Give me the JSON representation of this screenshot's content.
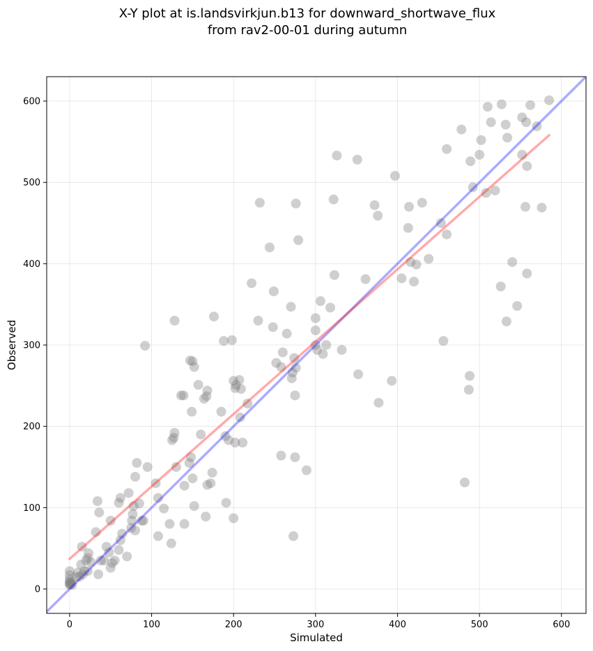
{
  "chart_data": {
    "type": "scatter",
    "title_lines": [
      "X-Y plot at is.landsvirkjun.b13 for downward_shortwave_flux",
      "from rav2-00-01 during autumn"
    ],
    "xlabel": "Simulated",
    "ylabel": "Observed",
    "xlim": [
      -28,
      630
    ],
    "ylim": [
      -30,
      630
    ],
    "xticks": [
      0,
      100,
      200,
      300,
      400,
      500,
      600
    ],
    "yticks": [
      0,
      100,
      200,
      300,
      400,
      500,
      600
    ],
    "grid": true,
    "point_color": "#808080",
    "identity_line_color": "#0000ff",
    "fit_line_color": "#ff0000",
    "fit_line": {
      "x": [
        0,
        585
      ],
      "y": [
        37,
        558
      ]
    },
    "points": [
      [
        0,
        5
      ],
      [
        0,
        7
      ],
      [
        0,
        9
      ],
      [
        0,
        12
      ],
      [
        0,
        17
      ],
      [
        0,
        22
      ],
      [
        1,
        6
      ],
      [
        2,
        8
      ],
      [
        3,
        5
      ],
      [
        8,
        15
      ],
      [
        10,
        20
      ],
      [
        12,
        15
      ],
      [
        14,
        30
      ],
      [
        15,
        52
      ],
      [
        16,
        18
      ],
      [
        18,
        22
      ],
      [
        20,
        35
      ],
      [
        22,
        22
      ],
      [
        22,
        38
      ],
      [
        23,
        44
      ],
      [
        26,
        33
      ],
      [
        32,
        70
      ],
      [
        34,
        108
      ],
      [
        35,
        18
      ],
      [
        36,
        94
      ],
      [
        38,
        35
      ],
      [
        42,
        35
      ],
      [
        45,
        52
      ],
      [
        48,
        45
      ],
      [
        50,
        84
      ],
      [
        50,
        26
      ],
      [
        52,
        32
      ],
      [
        55,
        35
      ],
      [
        60,
        106
      ],
      [
        60,
        48
      ],
      [
        62,
        112
      ],
      [
        62,
        60
      ],
      [
        64,
        68
      ],
      [
        70,
        40
      ],
      [
        72,
        118
      ],
      [
        75,
        75
      ],
      [
        76,
        84
      ],
      [
        77,
        92
      ],
      [
        78,
        102
      ],
      [
        80,
        138
      ],
      [
        80,
        72
      ],
      [
        82,
        155
      ],
      [
        85,
        105
      ],
      [
        88,
        84
      ],
      [
        90,
        84
      ],
      [
        92,
        299
      ],
      [
        95,
        150
      ],
      [
        105,
        130
      ],
      [
        108,
        112
      ],
      [
        108,
        65
      ],
      [
        115,
        99
      ],
      [
        122,
        80
      ],
      [
        124,
        56
      ],
      [
        125,
        183
      ],
      [
        127,
        186
      ],
      [
        128,
        192
      ],
      [
        128,
        330
      ],
      [
        130,
        150
      ],
      [
        136,
        238
      ],
      [
        139,
        238
      ],
      [
        140,
        80
      ],
      [
        140,
        127
      ],
      [
        146,
        155
      ],
      [
        147,
        281
      ],
      [
        148,
        162
      ],
      [
        149,
        218
      ],
      [
        150,
        136
      ],
      [
        150,
        280
      ],
      [
        152,
        273
      ],
      [
        152,
        102
      ],
      [
        157,
        251
      ],
      [
        160,
        190
      ],
      [
        164,
        234
      ],
      [
        166,
        89
      ],
      [
        167,
        237
      ],
      [
        168,
        128
      ],
      [
        168,
        244
      ],
      [
        172,
        130
      ],
      [
        174,
        143
      ],
      [
        176,
        335
      ],
      [
        185,
        218
      ],
      [
        188,
        305
      ],
      [
        190,
        188
      ],
      [
        191,
        106
      ],
      [
        194,
        183
      ],
      [
        198,
        306
      ],
      [
        200,
        256
      ],
      [
        200,
        87
      ],
      [
        202,
        247
      ],
      [
        202,
        180
      ],
      [
        203,
        251
      ],
      [
        207,
        257
      ],
      [
        208,
        211
      ],
      [
        209,
        246
      ],
      [
        211,
        180
      ],
      [
        217,
        228
      ],
      [
        222,
        376
      ],
      [
        230,
        330
      ],
      [
        232,
        475
      ],
      [
        244,
        420
      ],
      [
        248,
        322
      ],
      [
        249,
        366
      ],
      [
        252,
        278
      ],
      [
        258,
        164
      ],
      [
        258,
        273
      ],
      [
        260,
        291
      ],
      [
        265,
        314
      ],
      [
        270,
        347
      ],
      [
        271,
        259
      ],
      [
        272,
        266
      ],
      [
        273,
        65
      ],
      [
        274,
        284
      ],
      [
        275,
        162
      ],
      [
        275,
        238
      ],
      [
        276,
        474
      ],
      [
        276,
        272
      ],
      [
        279,
        429
      ],
      [
        289,
        146
      ],
      [
        300,
        300
      ],
      [
        300,
        318
      ],
      [
        300,
        333
      ],
      [
        302,
        294
      ],
      [
        306,
        354
      ],
      [
        309,
        289
      ],
      [
        313,
        300
      ],
      [
        318,
        346
      ],
      [
        322,
        479
      ],
      [
        323,
        386
      ],
      [
        326,
        533
      ],
      [
        332,
        294
      ],
      [
        351,
        528
      ],
      [
        352,
        264
      ],
      [
        361,
        381
      ],
      [
        372,
        472
      ],
      [
        376,
        459
      ],
      [
        377,
        229
      ],
      [
        393,
        256
      ],
      [
        397,
        508
      ],
      [
        405,
        382
      ],
      [
        413,
        444
      ],
      [
        414,
        470
      ],
      [
        416,
        402
      ],
      [
        420,
        378
      ],
      [
        423,
        399
      ],
      [
        430,
        475
      ],
      [
        438,
        406
      ],
      [
        453,
        450
      ],
      [
        456,
        305
      ],
      [
        460,
        436
      ],
      [
        460,
        541
      ],
      [
        478,
        565
      ],
      [
        482,
        131
      ],
      [
        487,
        245
      ],
      [
        488,
        262
      ],
      [
        489,
        526
      ],
      [
        492,
        494
      ],
      [
        500,
        534
      ],
      [
        502,
        552
      ],
      [
        508,
        487
      ],
      [
        510,
        593
      ],
      [
        514,
        574
      ],
      [
        519,
        490
      ],
      [
        526,
        372
      ],
      [
        527,
        596
      ],
      [
        532,
        571
      ],
      [
        533,
        329
      ],
      [
        534,
        555
      ],
      [
        540,
        402
      ],
      [
        546,
        348
      ],
      [
        552,
        580
      ],
      [
        552,
        534
      ],
      [
        556,
        470
      ],
      [
        557,
        574
      ],
      [
        558,
        388
      ],
      [
        558,
        520
      ],
      [
        562,
        595
      ],
      [
        570,
        569
      ],
      [
        576,
        469
      ],
      [
        585,
        601
      ]
    ]
  }
}
